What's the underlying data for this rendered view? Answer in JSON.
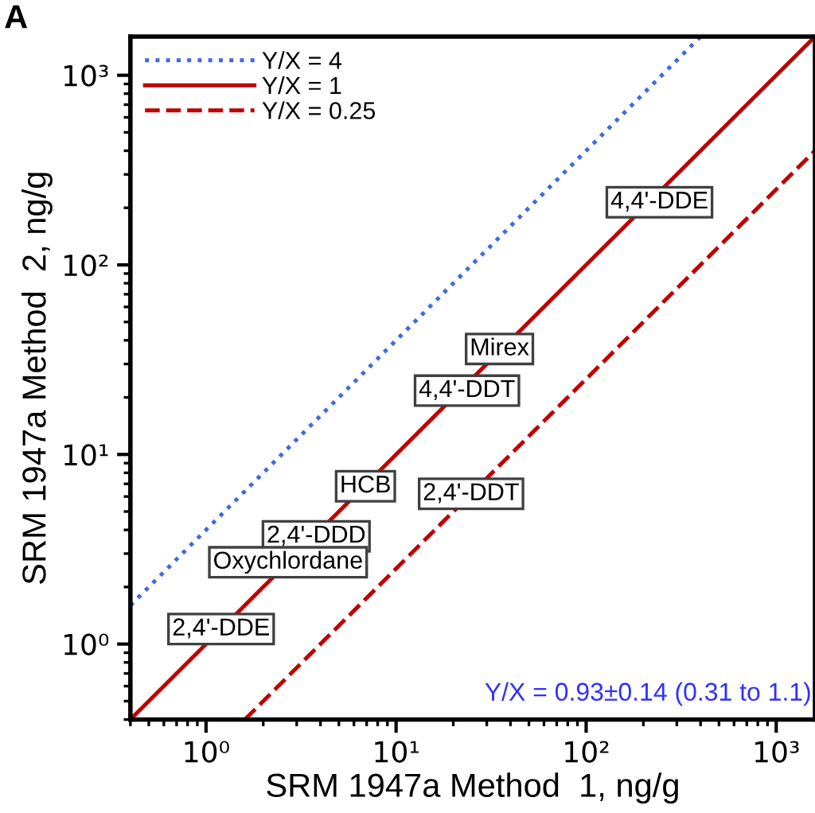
{
  "chart_data": {
    "type": "line",
    "xlabel": "SRM 1947a Method  1, ng/g",
    "ylabel": "SRM 1947a Method  2, ng/g",
    "log": "xy",
    "xlim": [
      0.4,
      1600
    ],
    "ylim": [
      0.4,
      1600
    ],
    "xticks": [
      {
        "value": 1,
        "label": "10⁰"
      },
      {
        "value": 10,
        "label": "10¹"
      },
      {
        "value": 100,
        "label": "10²"
      },
      {
        "value": 1000,
        "label": "10³"
      }
    ],
    "yticks": [
      {
        "value": 1,
        "label": "10⁰"
      },
      {
        "value": 10,
        "label": "10¹"
      },
      {
        "value": 100,
        "label": "10²"
      },
      {
        "value": 1000,
        "label": "10³"
      }
    ],
    "series": [
      {
        "name": "Y/X = 4",
        "color": "#4169e1",
        "line_style": "dotted",
        "x": [
          0.4,
          400
        ],
        "values": [
          1.6,
          1600
        ]
      },
      {
        "name": "Y/X = 1",
        "color": "#c00000",
        "line_style": "solid",
        "x": [
          0.4,
          1600
        ],
        "values": [
          0.4,
          1600
        ]
      },
      {
        "name": "Y/X = 0.25",
        "color": "#c00000",
        "line_style": "dashed",
        "x": [
          1.6,
          1600
        ],
        "values": [
          0.4,
          400
        ]
      }
    ],
    "legend": "top left",
    "grid": false,
    "annotations": [
      "A",
      {
        "text": "4,4'-DDE",
        "x": 243,
        "y": 214
      },
      {
        "text": "Mirex",
        "x": 35,
        "y": 36
      },
      {
        "text": "4,4'-DDT",
        "x": 23.6,
        "y": 21.7
      },
      {
        "text": "HCB",
        "x": 6.9,
        "y": 6.8
      },
      {
        "text": "2,4'-DDT",
        "x": 24.8,
        "y": 6.2
      },
      {
        "text": "2,4'-DDD",
        "x": 3.8,
        "y": 3.7
      },
      {
        "text": "Oxychlordane",
        "x": 2.7,
        "y": 2.7
      },
      {
        "text": "2,4'-DDE",
        "x": 1.2,
        "y": 1.2
      },
      "Y/X = 0.93±0.14 (0.31 to 1.1)"
    ]
  }
}
